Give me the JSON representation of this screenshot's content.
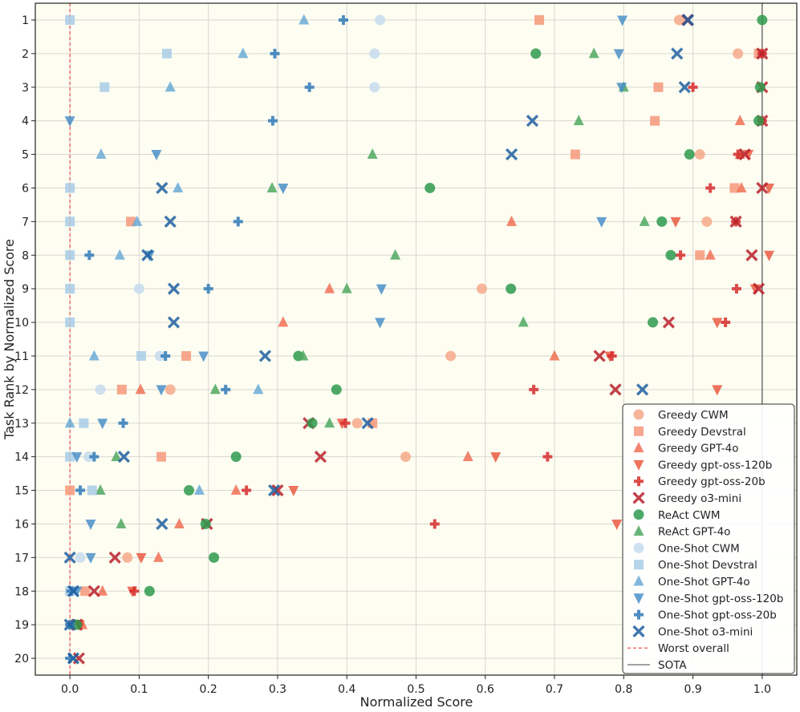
{
  "chart_data": {
    "type": "scatter",
    "xlabel": "Normalized Score",
    "ylabel": "Task Rank by Normalized Score",
    "xlim": [
      -0.05,
      1.05
    ],
    "ylim": [
      0.5,
      20.5
    ],
    "x_ticks": [
      "0.0",
      "0.1",
      "0.2",
      "0.3",
      "0.4",
      "0.5",
      "0.6",
      "0.7",
      "0.8",
      "0.9",
      "1.0"
    ],
    "y_ticks": [
      "1",
      "2",
      "3",
      "4",
      "5",
      "6",
      "7",
      "8",
      "9",
      "10",
      "11",
      "12",
      "13",
      "14",
      "15",
      "16",
      "17",
      "18",
      "19",
      "20"
    ],
    "grid": true,
    "legend_position": "bottom-right",
    "reference_lines": [
      {
        "name": "Worst overall",
        "x": 0.0,
        "style": "dashed",
        "color": "#e8413a"
      },
      {
        "name": "SOTA",
        "x": 1.0,
        "style": "solid",
        "color": "#444444"
      }
    ],
    "series": [
      {
        "name": "Greedy CWM",
        "marker": "circle",
        "color": "#f6a98a",
        "points": [
          [
            0.88,
            1
          ],
          [
            0.965,
            2
          ],
          [
            0.91,
            5
          ],
          [
            0.92,
            7
          ],
          [
            0.595,
            9
          ],
          [
            0.55,
            11
          ],
          [
            0.145,
            12
          ],
          [
            0.415,
            13
          ],
          [
            0.485,
            14
          ],
          [
            0.083,
            17
          ]
        ]
      },
      {
        "name": "Greedy Devstral",
        "marker": "square",
        "color": "#f6987a",
        "points": [
          [
            0.678,
            1
          ],
          [
            0.995,
            2
          ],
          [
            0.85,
            3
          ],
          [
            0.845,
            4
          ],
          [
            0.73,
            5
          ],
          [
            0.96,
            6
          ],
          [
            0.088,
            7
          ],
          [
            0.91,
            8
          ],
          [
            0.168,
            11
          ],
          [
            0.075,
            12
          ],
          [
            0.437,
            13
          ],
          [
            0.132,
            14
          ],
          [
            0.0,
            15
          ],
          [
            0.022,
            18
          ]
        ]
      },
      {
        "name": "Greedy GPT-4o",
        "marker": "triangle-up",
        "color": "#f07055",
        "points": [
          [
            0.968,
            4
          ],
          [
            0.968,
            5
          ],
          [
            0.97,
            6
          ],
          [
            0.638,
            7
          ],
          [
            0.925,
            8
          ],
          [
            0.375,
            9
          ],
          [
            0.308,
            10
          ],
          [
            0.7,
            11
          ],
          [
            0.102,
            12
          ],
          [
            0.575,
            14
          ],
          [
            0.24,
            15
          ],
          [
            0.158,
            16
          ],
          [
            0.128,
            17
          ],
          [
            0.047,
            18
          ],
          [
            0.018,
            19
          ]
        ]
      },
      {
        "name": "Greedy gpt-oss-120b",
        "marker": "triangle-down",
        "color": "#ea5a42",
        "points": [
          [
            0.98,
            5
          ],
          [
            1.01,
            6
          ],
          [
            0.875,
            7
          ],
          [
            1.01,
            8
          ],
          [
            0.99,
            9
          ],
          [
            0.935,
            10
          ],
          [
            0.78,
            11
          ],
          [
            0.935,
            12
          ],
          [
            0.393,
            13
          ],
          [
            0.615,
            14
          ],
          [
            0.323,
            15
          ],
          [
            0.79,
            16
          ],
          [
            0.103,
            17
          ],
          [
            0.09,
            18
          ],
          [
            0.014,
            19
          ]
        ]
      },
      {
        "name": "Greedy gpt-oss-20b",
        "marker": "plus",
        "color": "#d72c2c",
        "points": [
          [
            1.0,
            2
          ],
          [
            0.9,
            3
          ],
          [
            1.0,
            4
          ],
          [
            0.965,
            5
          ],
          [
            0.925,
            6
          ],
          [
            0.962,
            7
          ],
          [
            0.882,
            8
          ],
          [
            0.963,
            9
          ],
          [
            0.947,
            10
          ],
          [
            0.783,
            11
          ],
          [
            0.67,
            12
          ],
          [
            0.398,
            13
          ],
          [
            0.69,
            14
          ],
          [
            0.255,
            15
          ],
          [
            0.527,
            16
          ],
          [
            0.093,
            18
          ],
          [
            0.012,
            19
          ]
        ]
      },
      {
        "name": "Greedy o3-mini",
        "marker": "x",
        "color": "#b8202a",
        "points": [
          [
            0.892,
            1
          ],
          [
            1.0,
            2
          ],
          [
            1.0,
            3
          ],
          [
            1.0,
            4
          ],
          [
            0.975,
            5
          ],
          [
            1.0,
            6
          ],
          [
            0.962,
            7
          ],
          [
            0.985,
            8
          ],
          [
            0.995,
            9
          ],
          [
            0.865,
            10
          ],
          [
            0.765,
            11
          ],
          [
            0.788,
            12
          ],
          [
            0.345,
            13
          ],
          [
            0.362,
            14
          ],
          [
            0.3,
            15
          ],
          [
            0.198,
            16
          ],
          [
            0.065,
            17
          ],
          [
            0.035,
            18
          ],
          [
            0.01,
            19
          ],
          [
            0.013,
            20
          ]
        ]
      },
      {
        "name": "ReAct CWM",
        "marker": "circle",
        "color": "#2e9a4e",
        "points": [
          [
            1.0,
            1
          ],
          [
            0.673,
            2
          ],
          [
            0.997,
            3
          ],
          [
            0.995,
            4
          ],
          [
            0.895,
            5
          ],
          [
            0.52,
            6
          ],
          [
            0.855,
            7
          ],
          [
            0.868,
            8
          ],
          [
            0.637,
            9
          ],
          [
            0.842,
            10
          ],
          [
            0.33,
            11
          ],
          [
            0.385,
            12
          ],
          [
            0.35,
            13
          ],
          [
            0.24,
            14
          ],
          [
            0.172,
            15
          ],
          [
            0.196,
            16
          ],
          [
            0.208,
            17
          ],
          [
            0.115,
            18
          ],
          [
            0.01,
            19
          ]
        ]
      },
      {
        "name": "ReAct GPT-4o",
        "marker": "triangle-up",
        "color": "#4fa860",
        "points": [
          [
            0.757,
            2
          ],
          [
            0.8,
            3
          ],
          [
            0.735,
            4
          ],
          [
            0.437,
            5
          ],
          [
            0.292,
            6
          ],
          [
            0.83,
            7
          ],
          [
            0.47,
            8
          ],
          [
            0.4,
            9
          ],
          [
            0.655,
            10
          ],
          [
            0.337,
            11
          ],
          [
            0.21,
            12
          ],
          [
            0.375,
            13
          ],
          [
            0.067,
            14
          ],
          [
            0.044,
            15
          ],
          [
            0.074,
            16
          ],
          [
            0.005,
            19
          ]
        ]
      },
      {
        "name": "One-Shot CWM",
        "marker": "circle",
        "color": "#c7dbef",
        "points": [
          [
            0.448,
            1
          ],
          [
            0.44,
            2
          ],
          [
            0.44,
            3
          ],
          [
            0.1,
            9
          ],
          [
            0.13,
            11
          ],
          [
            0.044,
            12
          ],
          [
            0.027,
            14
          ],
          [
            0.015,
            17
          ]
        ]
      },
      {
        "name": "One-Shot Devstral",
        "marker": "square",
        "color": "#a9cce6",
        "points": [
          [
            0.0,
            1
          ],
          [
            0.14,
            2
          ],
          [
            0.05,
            3
          ],
          [
            0.0,
            6
          ],
          [
            0.0,
            7
          ],
          [
            0.0,
            8
          ],
          [
            0.0,
            9
          ],
          [
            0.0,
            10
          ],
          [
            0.103,
            11
          ],
          [
            0.02,
            13
          ],
          [
            0.0,
            14
          ],
          [
            0.032,
            15
          ],
          [
            0.0,
            18
          ]
        ]
      },
      {
        "name": "One-Shot GPT-4o",
        "marker": "triangle-up",
        "color": "#6aaad6",
        "points": [
          [
            0.338,
            1
          ],
          [
            0.25,
            2
          ],
          [
            0.145,
            3
          ],
          [
            0.045,
            5
          ],
          [
            0.156,
            6
          ],
          [
            0.097,
            7
          ],
          [
            0.072,
            8
          ],
          [
            0.035,
            11
          ],
          [
            0.272,
            12
          ],
          [
            0.0,
            13
          ],
          [
            0.187,
            15
          ]
        ]
      },
      {
        "name": "One-Shot gpt-oss-120b",
        "marker": "triangle-down",
        "color": "#4a8fc8",
        "points": [
          [
            0.798,
            1
          ],
          [
            0.793,
            2
          ],
          [
            0.797,
            3
          ],
          [
            0.0,
            4
          ],
          [
            0.125,
            5
          ],
          [
            0.308,
            6
          ],
          [
            0.768,
            7
          ],
          [
            0.115,
            8
          ],
          [
            0.45,
            9
          ],
          [
            0.448,
            10
          ],
          [
            0.193,
            11
          ],
          [
            0.132,
            12
          ],
          [
            0.047,
            13
          ],
          [
            0.01,
            14
          ],
          [
            0.03,
            16
          ],
          [
            0.03,
            17
          ],
          [
            0.01,
            18
          ]
        ]
      },
      {
        "name": "One-Shot gpt-oss-20b",
        "marker": "plus",
        "color": "#2f79b8",
        "points": [
          [
            0.395,
            1
          ],
          [
            0.296,
            2
          ],
          [
            0.346,
            3
          ],
          [
            0.293,
            4
          ],
          [
            0.243,
            7
          ],
          [
            0.028,
            8
          ],
          [
            0.2,
            9
          ],
          [
            0.138,
            11
          ],
          [
            0.225,
            12
          ],
          [
            0.077,
            13
          ],
          [
            0.035,
            14
          ],
          [
            0.015,
            15
          ],
          [
            0.002,
            18
          ],
          [
            0.0,
            19
          ],
          [
            0.0,
            20
          ]
        ]
      },
      {
        "name": "One-Shot o3-mini",
        "marker": "x",
        "color": "#1f5fa0",
        "points": [
          [
            0.893,
            1
          ],
          [
            0.877,
            2
          ],
          [
            0.888,
            3
          ],
          [
            0.668,
            4
          ],
          [
            0.638,
            5
          ],
          [
            0.133,
            6
          ],
          [
            0.145,
            7
          ],
          [
            0.112,
            8
          ],
          [
            0.15,
            9
          ],
          [
            0.15,
            10
          ],
          [
            0.282,
            11
          ],
          [
            0.827,
            12
          ],
          [
            0.43,
            13
          ],
          [
            0.078,
            14
          ],
          [
            0.295,
            15
          ],
          [
            0.133,
            16
          ],
          [
            0.0,
            17
          ],
          [
            0.005,
            18
          ],
          [
            0.0,
            19
          ],
          [
            0.005,
            20
          ]
        ]
      }
    ]
  }
}
